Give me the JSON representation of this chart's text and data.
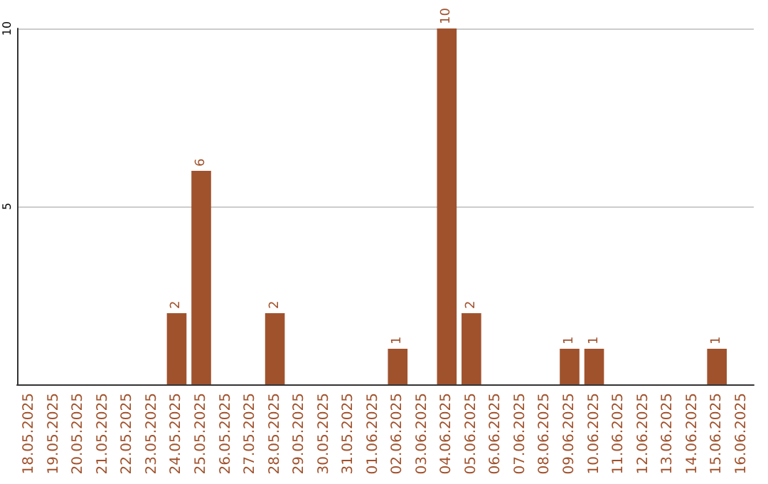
{
  "chart_data": {
    "type": "bar",
    "categories": [
      "18.05.2025",
      "19.05.2025",
      "20.05.2025",
      "21.05.2025",
      "22.05.2025",
      "23.05.2025",
      "24.05.2025",
      "25.05.2025",
      "26.05.2025",
      "27.05.2025",
      "28.05.2025",
      "29.05.2025",
      "30.05.2025",
      "31.05.2025",
      "01.06.2025",
      "02.06.2025",
      "03.06.2025",
      "04.06.2025",
      "05.06.2025",
      "06.06.2025",
      "07.06.2025",
      "08.06.2025",
      "09.06.2025",
      "10.06.2025",
      "11.06.2025",
      "12.06.2025",
      "13.06.2025",
      "14.06.2025",
      "15.06.2025",
      "16.06.2025"
    ],
    "values": [
      0,
      0,
      0,
      0,
      0,
      0,
      2,
      6,
      0,
      0,
      2,
      0,
      0,
      0,
      0,
      1,
      0,
      10,
      2,
      0,
      0,
      0,
      1,
      1,
      0,
      0,
      0,
      0,
      1,
      0
    ],
    "value_labels": [
      null,
      null,
      null,
      null,
      null,
      null,
      "2",
      "6",
      null,
      null,
      "2",
      null,
      null,
      null,
      null,
      "1",
      null,
      "10",
      "2",
      null,
      null,
      null,
      "1",
      "1",
      null,
      null,
      null,
      null,
      "1",
      null
    ],
    "color": "#a0522d",
    "ylim": [
      0,
      10
    ],
    "yticks": [
      5,
      10
    ],
    "grid": "y"
  }
}
